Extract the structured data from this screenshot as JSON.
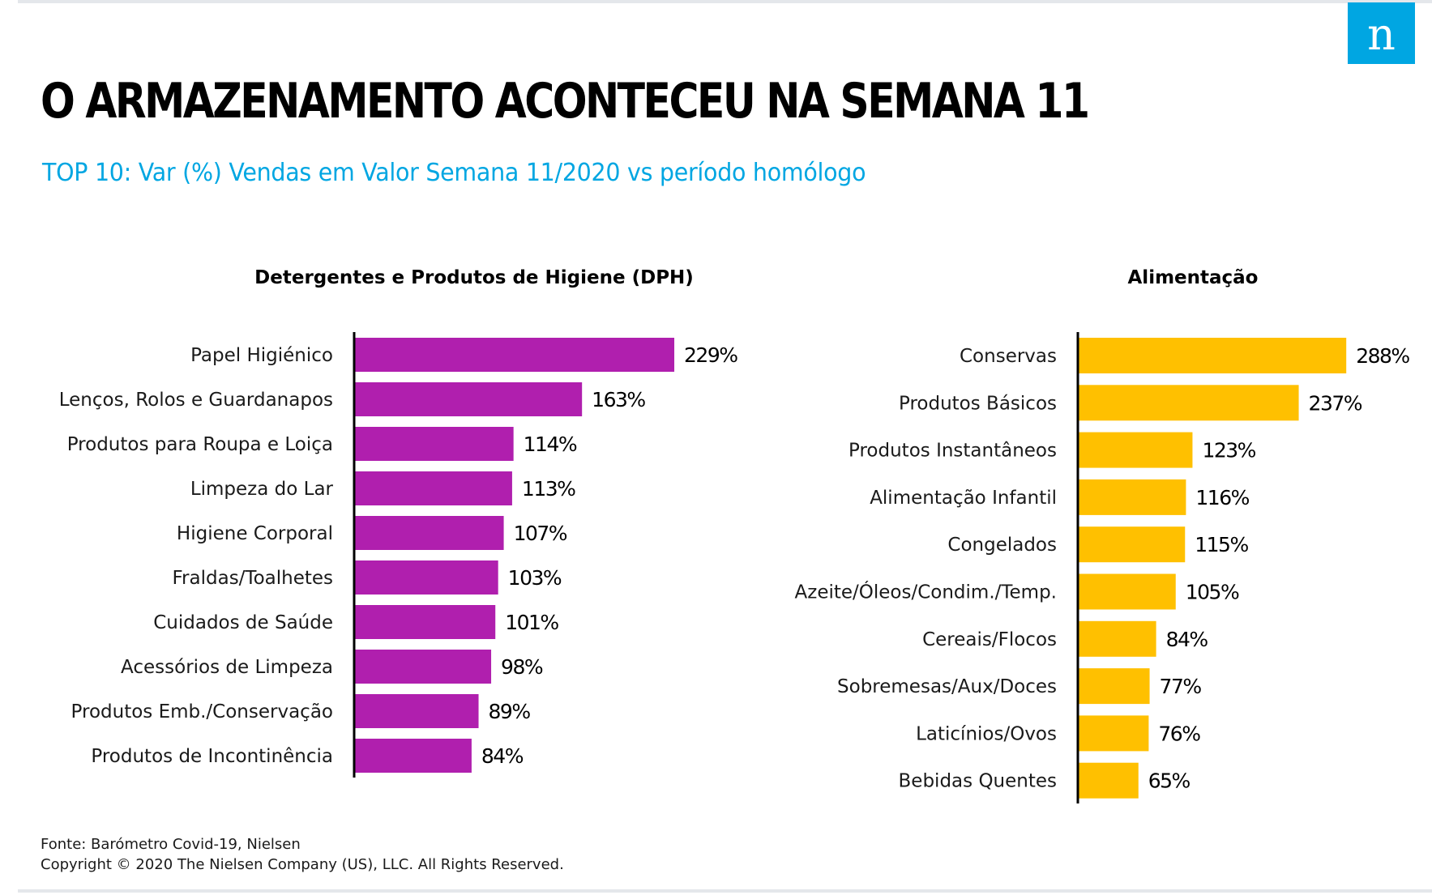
{
  "title": "O ARMAZENAMENTO ACONTECEU NA SEMANA 11",
  "subtitle": "TOP 10: Var (%) Vendas em Valor Semana 11/2020 vs período homólogo",
  "logo_letter": "n",
  "source": "Fonte: Barómetro Covid-19, Nielsen",
  "copyright": "Copyright © 2020 The Nielsen Company (US), LLC. All Rights Reserved.",
  "colors": {
    "accent": "#00a6e2",
    "dph_bars": "#b01fae",
    "food_bars": "#ffc000"
  },
  "chart_data": [
    {
      "type": "bar",
      "orientation": "horizontal",
      "title": "Detergentes e Produtos de Higiene (DPH)",
      "categories": [
        "Papel Higiénico",
        "Lenços, Rolos e Guardanapos",
        "Produtos para Roupa e Loiça",
        "Limpeza do Lar",
        "Higiene Corporal",
        "Fraldas/Toalhetes",
        "Cuidados de Saúde",
        "Acessórios de Limpeza",
        "Produtos Emb./Conservação",
        "Produtos de Incontinência"
      ],
      "values": [
        229,
        163,
        114,
        113,
        107,
        103,
        101,
        98,
        89,
        84
      ],
      "value_labels": [
        "229%",
        "163%",
        "114%",
        "113%",
        "107%",
        "103%",
        "101%",
        "98%",
        "89%",
        "84%"
      ],
      "color": "#b01fae",
      "grid": false
    },
    {
      "type": "bar",
      "orientation": "horizontal",
      "title": "Alimentação",
      "categories": [
        "Conservas",
        "Produtos Básicos",
        "Produtos Instantâneos",
        "Alimentação Infantil",
        "Congelados",
        "Azeite/Óleos/Condim./Temp.",
        "Cereais/Flocos",
        "Sobremesas/Aux/Doces",
        "Laticínios/Ovos",
        "Bebidas Quentes"
      ],
      "values": [
        288,
        237,
        123,
        116,
        115,
        105,
        84,
        77,
        76,
        65
      ],
      "value_labels": [
        "288%",
        "237%",
        "123%",
        "116%",
        "115%",
        "105%",
        "84%",
        "77%",
        "76%",
        "65%"
      ],
      "color": "#ffc000",
      "grid": false
    }
  ]
}
